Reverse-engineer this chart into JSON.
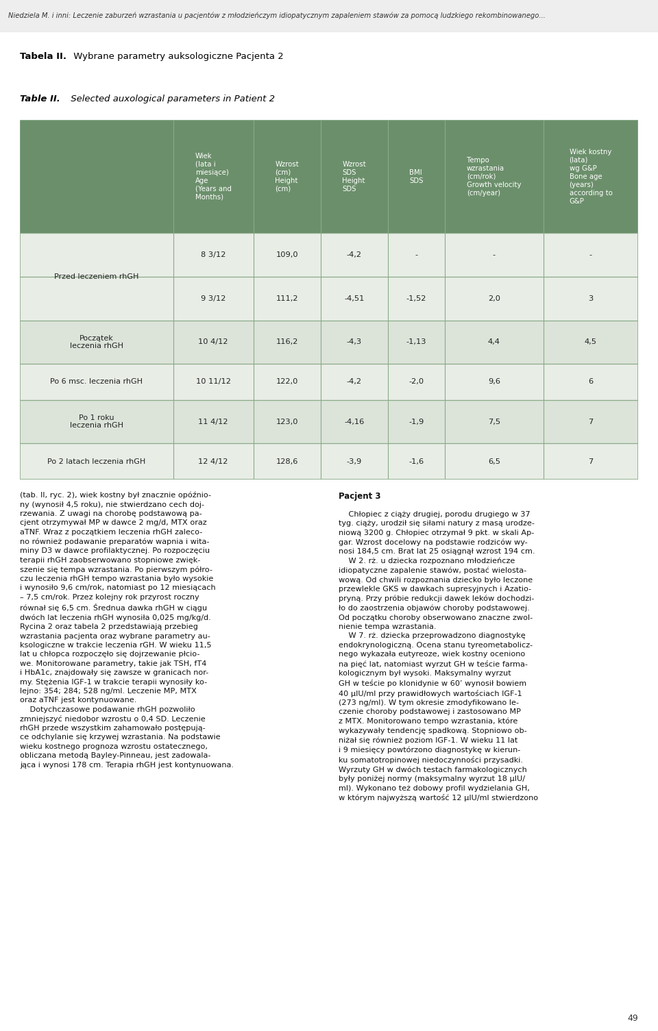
{
  "header_text": "Niedziela M. i inni: Leczenie zaburzeń wzrastania u pacjentów z młodzieńczym idiopatycznym zapaleniem stawów za pomocą ludzkiego rekombinowanego...",
  "title_bold": "Tabela II.",
  "title_bold_rest": " Wybrane parametry auksologiczne Pacjenta 2",
  "title_italic": "Table II.",
  "title_italic_rest": " Selected auxological parameters in Patient 2",
  "col_headers": [
    "Wiek\n(lata i\nmiesiące)\nAge\n(Years and\nMonths)",
    "Wzrost\n(cm)\nHeight\n(cm)",
    "Wzrost\nSDS\nHeight\nSDS",
    "BMI\nSDS",
    "Tempo\nwzrastania\n(cm/rok)\nGrowth velocity\n(cm/year)",
    "Wiek kostny\n(lata)\nwg G&P\nBone age\n(years)\naccording to\nG&P"
  ],
  "row_labels": [
    "Przed leczeniem rhGH",
    "Początek\nleczenia rhGH",
    "Po 6 msc. leczenia rhGH",
    "Po 1 roku\nleczenia rhGH",
    "Po 2 latach leczenia rhGH"
  ],
  "row_data_group1": [
    [
      "8 3/12",
      "109,0",
      "-4,2",
      "-",
      "-",
      "-"
    ],
    [
      "9 3/12",
      "111,2",
      "-4,51",
      "-1,52",
      "2,0",
      "3"
    ]
  ],
  "row_data_single": [
    [
      "10 4/12",
      "116,2",
      "-4,3",
      "-1,13",
      "4,4",
      "4,5"
    ],
    [
      "10 11/12",
      "122,0",
      "-4,2",
      "-2,0",
      "9,6",
      "6"
    ],
    [
      "11 4/12",
      "123,0",
      "-4,16",
      "-1,9",
      "7,5",
      "7"
    ],
    [
      "12 4/12",
      "128,6",
      "-3,9",
      "-1,6",
      "6,5",
      "7"
    ]
  ],
  "header_bg": "#6b8f6b",
  "header_fg": "#ffffff",
  "row_bg_colors": [
    "#e8ede6",
    "#e8ede6",
    "#dce4da",
    "#e8ede6",
    "#dce4da",
    "#e8ede6"
  ],
  "border_color": "#8aaa88",
  "page_bg": "#ffffff",
  "text_color": "#222222",
  "footer_page": "49",
  "body_text_left": "(tab. II, ryc. 2), wiek kostny był znacznie opóźnio-\nny (wynosił 4,5 roku), nie stwierdzano cech doj-\nrzewania. Z uwagi na chorobę podstawową pa-\ncjent otrzymywał MP w dawce 2 mg/d, MTX oraz\naTNF. Wraz z początkiem leczenia rhGH zaleco-\nno również podawanie preparatów wapnia i wita-\nminy D3 w dawce profilaktycznej. Po rozpoczęciu\nterapii rhGH zaobserwowano stopniowe zwięk-\nszenie się tempa wzrastania. Po pierwszym półro-\nczu leczenia rhGH tempo wzrastania było wysokie\ni wynosiło 9,6 cm/rok, natomiast po 12 miesiącach\n– 7,5 cm/rok. Przez kolejny rok przyrost roczny\nrównał się 6,5 cm. Średnua dawka rhGH w ciągu\ndwóch lat leczenia rhGH wynosiła 0,025 mg/kg/d.\nRycina 2 oraz tabela 2 przedstawiają przebieg\nwzrastania pacjenta oraz wybrane parametry au-\nksologiczne w trakcie leczenia rGH. W wieku 11,5\nlat u chłopca rozpoczęło się dojrzewanie płcio-\nwe. Monitorowane parametry, takie jak TSH, fT4\ni HbA1c, znajdowały się zawsze w granicach nor-\nmy. Stężenia IGF-1 w trakcie terapii wynosiły ko-\nlejno: 354; 284; 528 ng/ml. Leczenie MP, MTX\noraz aTNF jest kontynuowane.\n    Dotychczasowe podawanie rhGH pozwoliło\nzmniejszyć niedobor wzrostu o 0,4 SD. Leczenie\nrhGH przede wszystkim zahamowało postępują-\nce odchylanie się krzywej wzrastania. Na podstawie\nwieku kostnego prognoza wzrostu ostatecznego,\nobliczana metodą Bayley-Pinneau, jest zadowala-\njąca i wynosi 178 cm. Terapia rhGH jest kontynuowana.",
  "body_text_right_header": "Pacjent 3",
  "body_text_right_body": "    Chłopiec z ciąży drugiej, porodu drugiego w 37\ntyg. ciąży, urodził się siłami natury z masą urodze-\nniową 3200 g. Chłopiec otrzymał 9 pkt. w skali Ap-\ngar. Wzrost docelowy na podstawie rodziców wy-\nnosi 184,5 cm. Brat lat 25 osiągnął wzrost 194 cm.\n    W 2. rż. u dziecka rozpoznano młodzieńcze\nidiopatyczne zapalenie stawów, postać wielosta-\nwową. Od chwili rozpoznania dziecko było leczone\nprzewlekle GKS w dawkach supresyjnych i Azatio-\npryną. Przy próbie redukcji dawek leków dochodzi-\nło do zaostrzenia objawów choroby podstawowej.\nOd początku choroby obserwowano znaczne zwol-\nnienie tempa wzrastania.\n    W 7. rż. dziecka przeprowadzono diagnostykę\nendokrynologiczną. Ocena stanu tyreometabolicz-\nnego wykazała eutyreoze, wiek kostny oceniono\nna pięć lat, natomiast wyrzut GH w teście farma-\nkologicznym był wysoki. Maksymalny wyrzut\nGH w teście po klonidynie w 60’ wynosił bowiem\n40 μIU/ml przy prawidłowych wartościach IGF-1\n(273 ng/ml). W tym okresie zmodyfikowano le-\nczenie choroby podstawowej i zastosowano MP\nz MTX. Monitorowano tempo wzrastania, które\nwykazywały tendencję spadkową. Stopniowo ob-\nniżał się również poziom IGF-1. W wieku 11 lat\ni 9 miesięcy powtórzono diagnostykę w kierun-\nku somatotropinowej niedoczynności przysadki.\nWyrzuty GH w dwóch testach farmakologicznych\nbyły poniżej normy (maksymalny wyrzut 18 μIU/\nml). Wykonano też dobowy profil wydzielania GH,\nw którym najwyższą wartość 12 μIU/ml stwierdzono"
}
